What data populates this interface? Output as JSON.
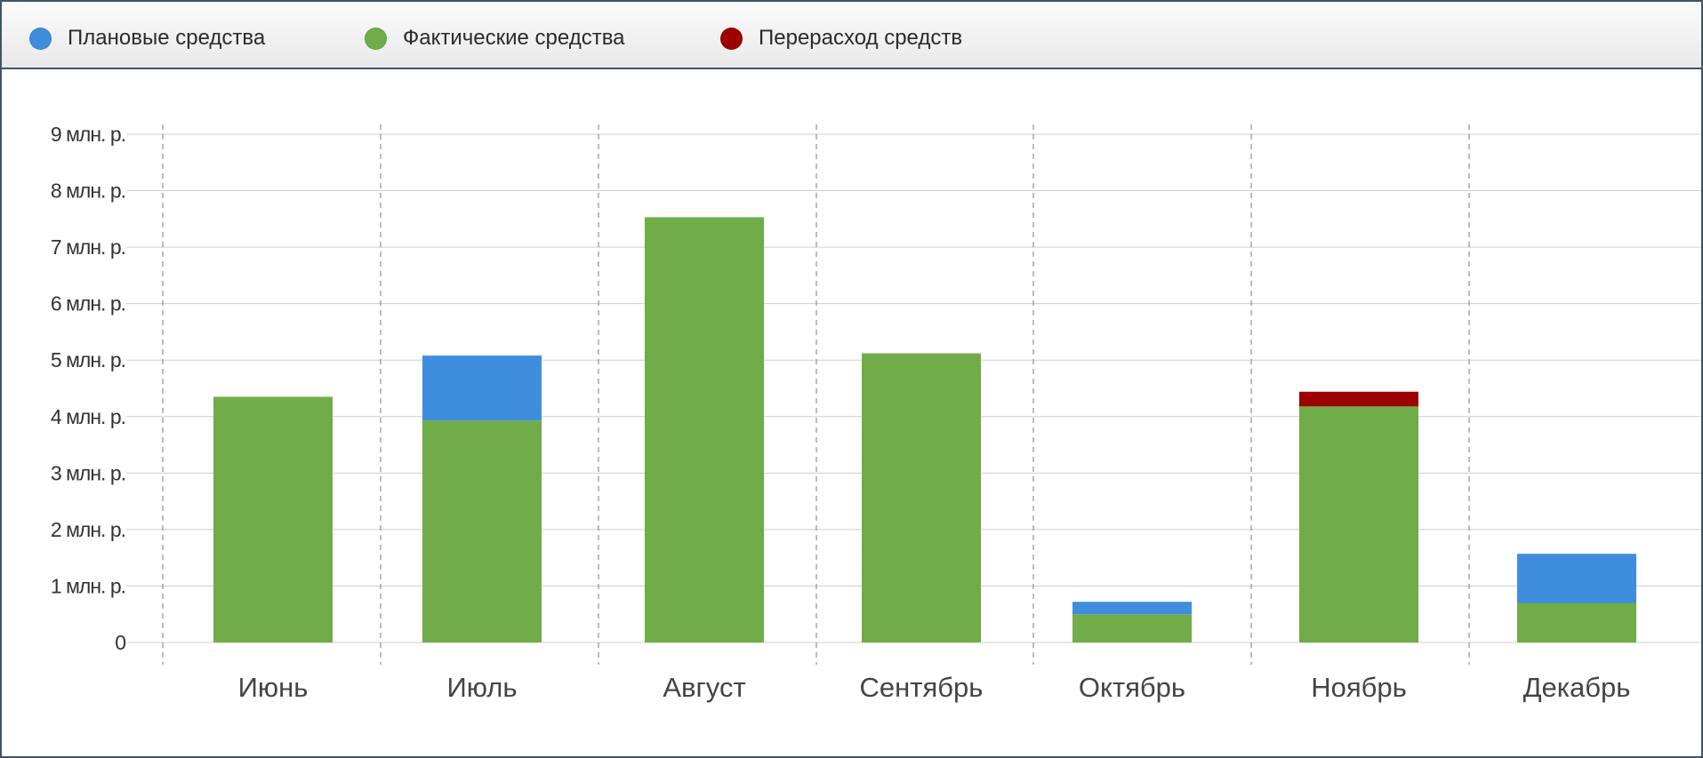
{
  "legend": {
    "items": [
      {
        "label": "Плановые средства",
        "color": "#3f8ddd"
      },
      {
        "label": "Фактические средства",
        "color": "#70ac47"
      },
      {
        "label": "Перерасход средств",
        "color": "#9c0000"
      }
    ]
  },
  "chart_data": {
    "type": "bar",
    "stacked": true,
    "categories": [
      "Июнь",
      "Июль",
      "Август",
      "Сентябрь",
      "Октябрь",
      "Ноябрь",
      "Декабрь"
    ],
    "series": [
      {
        "name": "Фактические средства",
        "color": "#70ac47",
        "values": [
          4.35,
          3.93,
          7.53,
          5.12,
          0.5,
          4.18,
          0.7
        ]
      },
      {
        "name": "Плановые средства",
        "color": "#3f8ddd",
        "values": [
          0,
          1.15,
          0,
          0,
          0.22,
          0,
          0.87
        ]
      },
      {
        "name": "Перерасход средств",
        "color": "#9c0000",
        "values": [
          0,
          0,
          0,
          0,
          0,
          0.26,
          0
        ]
      }
    ],
    "yticks": [
      "0",
      "1 млн. р.",
      "2 млн. р.",
      "3 млн. р.",
      "4 млн. р.",
      "5 млн. р.",
      "6 млн. р.",
      "7 млн. р.",
      "8 млн. р.",
      "9 млн. р."
    ],
    "ylim": [
      0,
      9
    ],
    "grid": true,
    "legend_position": "top-left"
  }
}
